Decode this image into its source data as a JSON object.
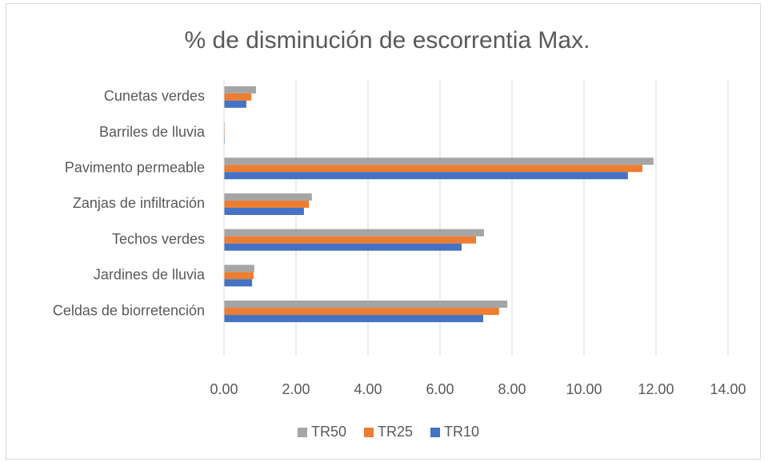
{
  "chart_data": {
    "type": "bar",
    "orientation": "horizontal",
    "title": "% de disminución de escorrentia Max.",
    "categories": [
      "Cunetas verdes",
      "Barriles de lluvia",
      "Pavimento permeable",
      "Zanjas de infiltración",
      "Techos verdes",
      "Jardines de lluvia",
      "Celdas de biorretención"
    ],
    "series": [
      {
        "name": "TR50",
        "color": "#a5a5a5",
        "values": [
          0.89,
          0.02,
          11.93,
          2.44,
          7.22,
          0.84,
          7.87
        ]
      },
      {
        "name": "TR25",
        "color": "#ed7d31",
        "values": [
          0.76,
          0.02,
          11.62,
          2.36,
          7.0,
          0.82,
          7.64
        ]
      },
      {
        "name": "TR10",
        "color": "#4472c4",
        "values": [
          0.62,
          0.02,
          11.22,
          2.22,
          6.6,
          0.78,
          7.2
        ]
      }
    ],
    "xlim": [
      0,
      14
    ],
    "xticks": [
      {
        "value": 0,
        "label": "0.00"
      },
      {
        "value": 2,
        "label": "2.00"
      },
      {
        "value": 4,
        "label": "4.00"
      },
      {
        "value": 6,
        "label": "6.00"
      },
      {
        "value": 8,
        "label": "8.00"
      },
      {
        "value": 10,
        "label": "10.00"
      },
      {
        "value": 12,
        "label": "12.00"
      },
      {
        "value": 14,
        "label": "14.00"
      }
    ],
    "grid": true,
    "legend": "bottom"
  }
}
